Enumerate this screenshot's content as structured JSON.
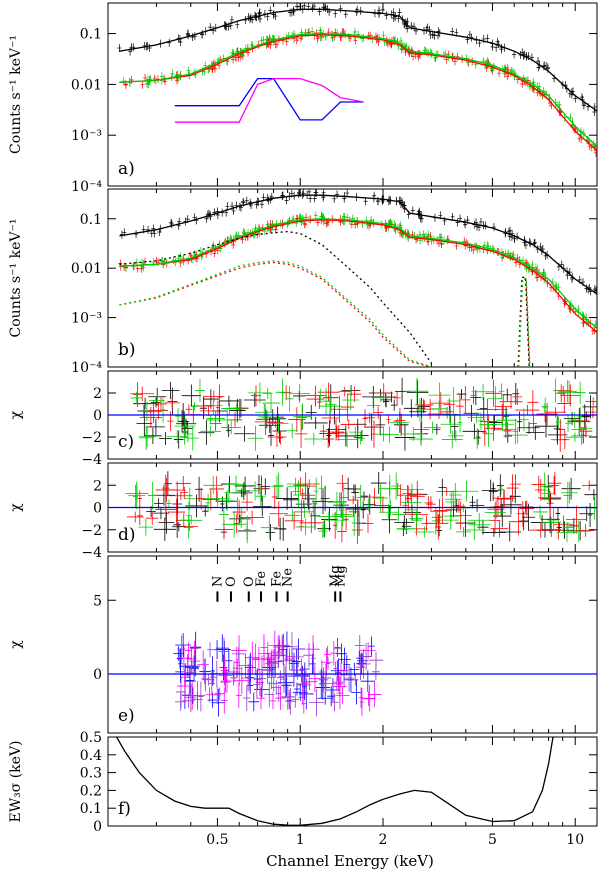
{
  "figure": {
    "xlabel": "Channel Energy (keV)",
    "xticks": [
      "0.5",
      "1",
      "2",
      "5",
      "10"
    ],
    "xtick_values": [
      0.5,
      1,
      2,
      5,
      10
    ],
    "xlim": [
      0.2,
      12
    ],
    "x_scale": "log"
  },
  "colors": {
    "black": "#000000",
    "red": "#ff0000",
    "green": "#00cc00",
    "blue": "#0000ff",
    "magenta": "#ff00ff",
    "purple": "#9933cc",
    "cyan": "#00cccc"
  },
  "chart_data": [
    {
      "id": "a",
      "panel_label": "a)",
      "type": "scatter",
      "ylabel": "Counts s⁻¹ keV⁻¹",
      "y_scale": "log",
      "ylim": [
        0.0001,
        0.4
      ],
      "yticks": [
        "0.1",
        "0.01",
        "10⁻³",
        "10⁻⁴"
      ],
      "ytick_values": [
        0.1,
        0.01,
        0.001,
        0.0001
      ],
      "series": [
        {
          "color": "black",
          "x": [
            0.22,
            0.3,
            0.4,
            0.5,
            0.6,
            0.7,
            0.8,
            1.0,
            1.2,
            1.5,
            2.0,
            2.3,
            2.5,
            3.0,
            4.0,
            5.0,
            6.0,
            7.0,
            8.0,
            10.0,
            12.0
          ],
          "y": [
            0.045,
            0.06,
            0.09,
            0.13,
            0.18,
            0.22,
            0.26,
            0.3,
            0.3,
            0.28,
            0.25,
            0.22,
            0.13,
            0.11,
            0.085,
            0.065,
            0.045,
            0.03,
            0.018,
            0.006,
            0.003
          ]
        },
        {
          "color": "red",
          "x": [
            0.22,
            0.3,
            0.4,
            0.5,
            0.6,
            0.7,
            0.8,
            1.0,
            1.2,
            1.5,
            2.0,
            2.3,
            2.5,
            3.0,
            4.0,
            5.0,
            6.0,
            7.0,
            8.0,
            10.0,
            12.0
          ],
          "y": [
            0.011,
            0.012,
            0.015,
            0.025,
            0.04,
            0.055,
            0.07,
            0.09,
            0.095,
            0.09,
            0.075,
            0.06,
            0.042,
            0.038,
            0.03,
            0.022,
            0.015,
            0.009,
            0.005,
            0.0012,
            0.0005
          ]
        },
        {
          "color": "green",
          "x": [
            0.22,
            0.3,
            0.4,
            0.5,
            0.6,
            0.7,
            0.8,
            1.0,
            1.2,
            1.5,
            2.0,
            2.3,
            2.5,
            3.0,
            4.0,
            5.0,
            6.0,
            7.0,
            8.0,
            10.0,
            12.0
          ],
          "y": [
            0.011,
            0.012,
            0.016,
            0.027,
            0.043,
            0.058,
            0.075,
            0.095,
            0.1,
            0.095,
            0.08,
            0.065,
            0.045,
            0.04,
            0.032,
            0.024,
            0.016,
            0.01,
            0.006,
            0.0015,
            0.0006
          ]
        },
        {
          "color": "blue",
          "x": [
            0.35,
            0.45,
            0.6,
            0.7,
            0.8,
            1.0,
            1.2,
            1.4,
            1.7
          ],
          "y": [
            0.0038,
            0.0038,
            0.0038,
            0.013,
            0.013,
            0.002,
            0.002,
            0.0045,
            0.0045
          ]
        },
        {
          "color": "magenta",
          "x": [
            0.35,
            0.45,
            0.6,
            0.7,
            0.8,
            1.0,
            1.2,
            1.4,
            1.7
          ],
          "y": [
            0.0018,
            0.0018,
            0.0018,
            0.01,
            0.013,
            0.013,
            0.0095,
            0.0055,
            0.0045
          ]
        }
      ]
    },
    {
      "id": "b",
      "panel_label": "b)",
      "type": "scatter",
      "ylabel": "Counts s⁻¹ keV⁻¹",
      "y_scale": "log",
      "ylim": [
        0.0001,
        0.4
      ],
      "yticks": [
        "0.1",
        "0.01",
        "10⁻³",
        "10⁻⁴"
      ],
      "ytick_values": [
        0.1,
        0.01,
        0.001,
        0.0001
      ],
      "series": [
        {
          "color": "black",
          "x": [
            0.22,
            0.3,
            0.4,
            0.5,
            0.6,
            0.7,
            0.8,
            1.0,
            1.2,
            1.5,
            2.0,
            2.3,
            2.5,
            3.0,
            4.0,
            5.0,
            6.0,
            7.0,
            8.0,
            10.0,
            12.0
          ],
          "y": [
            0.045,
            0.06,
            0.09,
            0.13,
            0.18,
            0.22,
            0.26,
            0.3,
            0.3,
            0.28,
            0.25,
            0.22,
            0.13,
            0.11,
            0.085,
            0.065,
            0.045,
            0.03,
            0.018,
            0.006,
            0.003
          ]
        },
        {
          "color": "red",
          "x": [
            0.22,
            0.3,
            0.4,
            0.5,
            0.6,
            0.7,
            0.8,
            1.0,
            1.2,
            1.5,
            2.0,
            2.3,
            2.5,
            3.0,
            4.0,
            5.0,
            6.0,
            7.0,
            8.0,
            10.0,
            12.0
          ],
          "y": [
            0.011,
            0.012,
            0.015,
            0.025,
            0.04,
            0.055,
            0.07,
            0.09,
            0.095,
            0.09,
            0.075,
            0.06,
            0.042,
            0.038,
            0.03,
            0.022,
            0.015,
            0.009,
            0.005,
            0.0012,
            0.0005
          ]
        },
        {
          "color": "green",
          "x": [
            0.22,
            0.3,
            0.4,
            0.5,
            0.6,
            0.7,
            0.8,
            1.0,
            1.2,
            1.5,
            2.0,
            2.3,
            2.5,
            3.0,
            4.0,
            5.0,
            6.0,
            7.0,
            8.0,
            10.0,
            12.0
          ],
          "y": [
            0.011,
            0.012,
            0.016,
            0.027,
            0.043,
            0.058,
            0.075,
            0.095,
            0.1,
            0.095,
            0.08,
            0.065,
            0.045,
            0.04,
            0.032,
            0.024,
            0.016,
            0.01,
            0.006,
            0.0015,
            0.0006
          ]
        },
        {
          "color": "black",
          "dashed": true,
          "x": [
            0.22,
            0.3,
            0.4,
            0.5,
            0.6,
            0.7,
            0.8,
            0.9,
            1.0,
            1.2,
            1.5,
            1.8,
            2.0,
            2.5,
            3.0
          ],
          "y": [
            0.012,
            0.014,
            0.02,
            0.03,
            0.04,
            0.048,
            0.052,
            0.055,
            0.05,
            0.03,
            0.01,
            0.004,
            0.002,
            0.0005,
            0.00012
          ]
        },
        {
          "color": "red",
          "dashed": true,
          "x": [
            0.22,
            0.3,
            0.4,
            0.5,
            0.6,
            0.7,
            0.8,
            0.9,
            1.0,
            1.2,
            1.5,
            1.8,
            2.0,
            2.5,
            3.0
          ],
          "y": [
            0.0018,
            0.0025,
            0.0045,
            0.007,
            0.01,
            0.012,
            0.013,
            0.012,
            0.01,
            0.006,
            0.002,
            0.0008,
            0.0004,
            0.00013,
            0.0001
          ]
        },
        {
          "color": "green",
          "dashed": true,
          "x": [
            0.22,
            0.3,
            0.4,
            0.5,
            0.6,
            0.7,
            0.8,
            0.9,
            1.0,
            1.2,
            1.5,
            1.8,
            2.0,
            2.5,
            3.0
          ],
          "y": [
            0.0018,
            0.0026,
            0.0047,
            0.0075,
            0.011,
            0.013,
            0.014,
            0.013,
            0.011,
            0.0065,
            0.0022,
            0.0009,
            0.00045,
            0.00014,
            0.0001
          ]
        },
        {
          "color": "black",
          "dashed": true,
          "x": [
            6.2,
            6.4,
            6.6,
            6.8
          ],
          "y": [
            0.0001,
            0.0065,
            0.0065,
            0.0001
          ]
        },
        {
          "color": "red",
          "dashed": true,
          "x": [
            6.22,
            6.42,
            6.62,
            6.82
          ],
          "y": [
            0.0001,
            0.006,
            0.006,
            0.0001
          ]
        },
        {
          "color": "green",
          "dashed": true,
          "x": [
            6.24,
            6.44,
            6.64,
            6.84
          ],
          "y": [
            0.0001,
            0.0062,
            0.0062,
            0.0001
          ]
        }
      ]
    },
    {
      "id": "c",
      "panel_label": "c)",
      "type": "scatter",
      "ylabel": "χ",
      "ylim": [
        -4,
        4
      ],
      "yticks": [
        "2",
        "0",
        "−2",
        "−4"
      ],
      "ytick_values": [
        2,
        0,
        -2,
        -4
      ],
      "series": [
        {
          "color": "blue",
          "x": [
            0.2,
            12
          ],
          "y": [
            0,
            0
          ]
        }
      ]
    },
    {
      "id": "d",
      "panel_label": "d)",
      "type": "scatter",
      "ylabel": "χ",
      "ylim": [
        -4,
        4
      ],
      "yticks": [
        "2",
        "0",
        "−2",
        "−4"
      ],
      "ytick_values": [
        2,
        0,
        -2,
        -4
      ],
      "series": [
        {
          "color": "blue",
          "x": [
            0.2,
            12
          ],
          "y": [
            0,
            0
          ]
        }
      ]
    },
    {
      "id": "e",
      "panel_label": "e)",
      "type": "scatter",
      "ylabel": "χ",
      "ylim": [
        -4,
        8
      ],
      "yticks": [
        "5",
        "0"
      ],
      "ytick_values": [
        5,
        0
      ],
      "line_ids": [
        {
          "label": "N",
          "energy": 0.5
        },
        {
          "label": "O",
          "energy": 0.56
        },
        {
          "label": "O",
          "energy": 0.65
        },
        {
          "label": "Fe",
          "energy": 0.72
        },
        {
          "label": "Fe",
          "energy": 0.82
        },
        {
          "label": "Ne",
          "energy": 0.9
        },
        {
          "label": "Mg",
          "energy": 1.34
        },
        {
          "label": "Mg",
          "energy": 1.4
        }
      ],
      "series": [
        {
          "color": "blue",
          "x": [
            0.2,
            12
          ],
          "y": [
            0,
            0
          ]
        }
      ]
    },
    {
      "id": "f",
      "panel_label": "f)",
      "type": "line",
      "ylabel": "EW₃σ (keV)",
      "ylim": [
        0,
        0.5
      ],
      "yticks": [
        "0.5",
        "0.4",
        "0.3",
        "0.2",
        "0.1",
        "0"
      ],
      "ytick_values": [
        0.5,
        0.4,
        0.3,
        0.2,
        0.1,
        0
      ],
      "series": [
        {
          "color": "black",
          "x": [
            0.215,
            0.23,
            0.26,
            0.3,
            0.35,
            0.4,
            0.45,
            0.5,
            0.55,
            0.6,
            0.7,
            0.8,
            0.9,
            1.0,
            1.2,
            1.4,
            1.6,
            1.8,
            2.0,
            2.3,
            2.6,
            3.0,
            3.5,
            4.0,
            5.0,
            6.0,
            7.0,
            7.6,
            8.0,
            8.3
          ],
          "y": [
            0.5,
            0.42,
            0.3,
            0.2,
            0.14,
            0.11,
            0.1,
            0.1,
            0.1,
            0.07,
            0.03,
            0.01,
            0.005,
            0.004,
            0.015,
            0.04,
            0.08,
            0.12,
            0.15,
            0.18,
            0.2,
            0.19,
            0.12,
            0.06,
            0.025,
            0.03,
            0.08,
            0.2,
            0.35,
            0.5
          ]
        }
      ]
    }
  ]
}
